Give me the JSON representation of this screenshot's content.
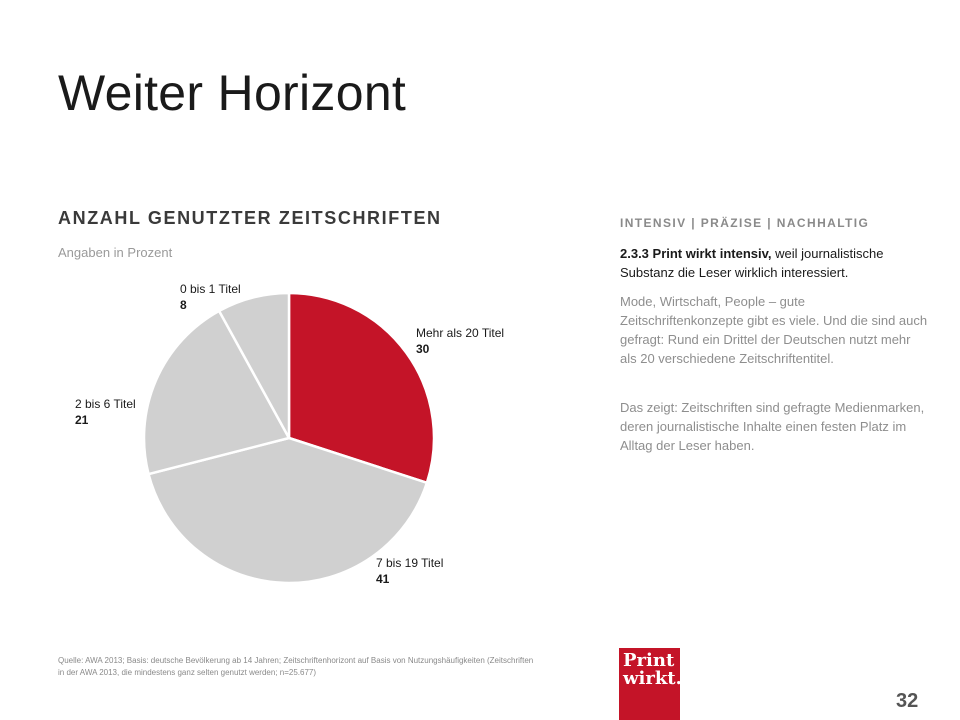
{
  "slide": {
    "title": "Weiter Horizont",
    "page_number": "32"
  },
  "chart_heading": "ANZAHL GENUTZTER ZEITSCHRIFTEN",
  "chart_subheading": "Angaben in Prozent",
  "chart_data": {
    "type": "pie",
    "title": "ANZAHL GENUTZTER ZEITSCHRIFTEN",
    "subtitle": "Angaben in Prozent",
    "start": "12 o'clock, clockwise",
    "slices": [
      {
        "label": "Mehr als 20 Titel",
        "value": 30,
        "color": "#c41428"
      },
      {
        "label": "7 bis 19 Titel",
        "value": 41,
        "color": "#d0d0d0"
      },
      {
        "label": "2 bis 6 Titel",
        "value": 21,
        "color": "#d0d0d0"
      },
      {
        "label": "0 bis 1 Titel",
        "value": 8,
        "color": "#d0d0d0"
      }
    ]
  },
  "sidebar": {
    "heading": "INTENSIV | PRÄZISE | NACHHALTIG",
    "lead_bold": "2.3.3 Print wirkt intensiv,",
    "lead_rest": " weil journalistische Substanz die Leser wirklich interessiert.",
    "paragraph1": "Mode, Wirtschaft, People – gute Zeitschriftenkonzepte gibt es viele. Und die sind auch gefragt: Rund ein Drittel der Deutschen nutzt mehr als 20 verschiedene Zeitschriftentitel.",
    "paragraph2": "Das zeigt: Zeitschriften sind gefragte Medienmarken, deren journalistische Inhalte einen festen Platz im Alltag der Leser haben."
  },
  "source_note": "Quelle: AWA 2013; Basis: deutsche Bevölkerung ab 14 Jahren; Zeitschriftenhorizont auf Basis von Nutzungshäufigkeiten (Zeitschriften in der AWA 2013, die mindestens ganz selten genutzt werden; n=25.677)",
  "logo": {
    "line1": "Print",
    "line2": "wirkt."
  }
}
